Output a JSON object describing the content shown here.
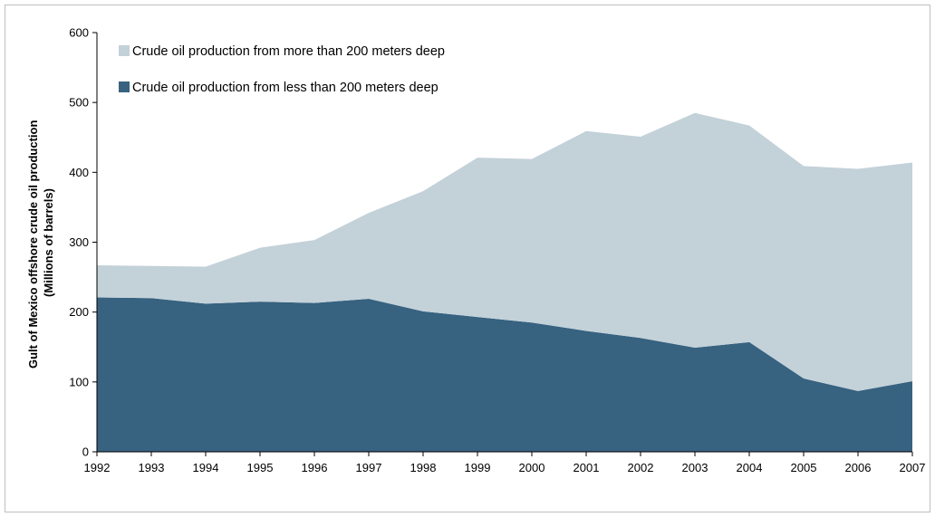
{
  "chart_data": {
    "type": "area",
    "stacked": true,
    "title": "",
    "xlabel": "",
    "ylabel_lines": [
      "Gult of Mexico offshore crude oil production",
      "(Millions of barrels)"
    ],
    "x": [
      "1992",
      "1993",
      "1994",
      "1995",
      "1996",
      "1997",
      "1998",
      "1999",
      "2000",
      "2001",
      "2002",
      "2003",
      "2004",
      "2005",
      "2006",
      "2007"
    ],
    "ylim": [
      0,
      600
    ],
    "yticks": [
      "0",
      "100",
      "200",
      "300",
      "400",
      "500",
      "600"
    ],
    "grid": false,
    "legend_position": "top-left",
    "series": [
      {
        "name": "Crude oil production from less than 200 meters deep",
        "color": "#376280",
        "values": [
          221,
          220,
          212,
          215,
          213,
          219,
          201,
          193,
          185,
          173,
          163,
          149,
          157,
          105,
          87,
          101
        ]
      },
      {
        "name": "Crude oil production from more than 200 meters deep",
        "color": "#c3d1d9",
        "values": [
          46,
          46,
          53,
          77,
          90,
          123,
          172,
          228,
          234,
          286,
          288,
          336,
          310,
          304,
          318,
          313
        ]
      }
    ],
    "legend_order": [
      1,
      0
    ]
  }
}
